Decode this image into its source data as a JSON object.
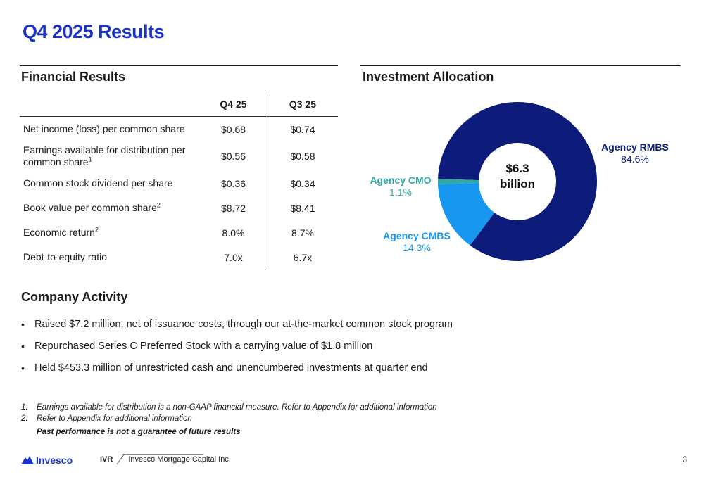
{
  "page_title": "Q4 2025 Results",
  "financial": {
    "title": "Financial Results",
    "col_q4": "Q4 25",
    "col_q3": "Q3 25",
    "rows": [
      {
        "label": "Net income (loss) per common share",
        "sup": "",
        "q4": "$0.68",
        "q3": "$0.74"
      },
      {
        "label": "Earnings available for distribution per common share",
        "sup": "1",
        "q4": "$0.56",
        "q3": "$0.58"
      },
      {
        "label": "Common stock dividend per share",
        "sup": "",
        "q4": "$0.36",
        "q3": "$0.34"
      },
      {
        "label": "Book value per common share",
        "sup": "2",
        "q4": "$8.72",
        "q3": "$8.41"
      },
      {
        "label": "Economic return",
        "sup": "2",
        "q4": "8.0%",
        "q3": "8.7%"
      },
      {
        "label": "Debt-to-equity ratio",
        "sup": "",
        "q4": "7.0x",
        "q3": "6.7x"
      }
    ]
  },
  "allocation": {
    "title": "Investment Allocation",
    "center_line1": "$6.3",
    "center_line2": "billion",
    "rmbs_name": "Agency RMBS",
    "rmbs_pct": "84.6%",
    "cmo_name": "Agency CMO",
    "cmo_pct": "1.1%",
    "cmbs_name": "Agency CMBS",
    "cmbs_pct": "14.3%"
  },
  "chart_data": {
    "type": "pie",
    "title": "Investment Allocation",
    "categories": [
      "Agency RMBS",
      "Agency CMBS",
      "Agency CMO"
    ],
    "values": [
      84.6,
      14.3,
      1.1
    ],
    "colors": [
      "#0d1b7a",
      "#1797f0",
      "#2eaaa0"
    ],
    "center_label": "$6.3 billion"
  },
  "activity": {
    "title": "Company Activity",
    "items": [
      "Raised $7.2 million, net of issuance costs, through our at-the-market common stock program",
      "Repurchased Series C Preferred Stock with a carrying value of $1.8 million",
      "Held $453.3 million of unrestricted cash and unencumbered investments at quarter end"
    ]
  },
  "footnotes": {
    "n1": "1.",
    "t1": "Earnings available for distribution is a non-GAAP financial measure. Refer to Appendix for additional information",
    "n2": "2.",
    "t2": "Refer to Appendix for additional information",
    "disclaimer": "Past performance is not a guarantee of future results"
  },
  "footer": {
    "logo": "Invesco",
    "ticker": "IVR",
    "company": "Invesco Mortgage Capital Inc.",
    "page": "3"
  },
  "colors": {
    "title_blue": "#1a33c4",
    "rmbs": "#0d1b7a",
    "cmbs": "#1797f0",
    "cmo": "#2eaaa0"
  }
}
